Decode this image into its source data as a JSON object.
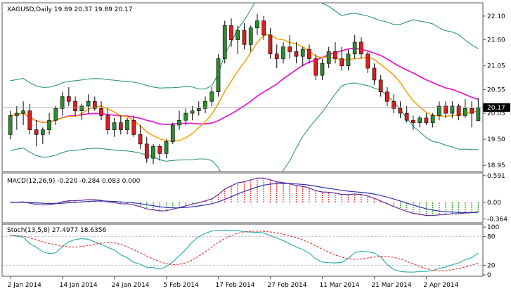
{
  "chart_data": {
    "type": "candlestick",
    "main": {
      "header": "XAGUSD,Daily  19.89 20.37 19.89 20.17",
      "ylim": [
        18.82,
        22.38
      ],
      "y_ticks": [
        "22.10",
        "21.60",
        "21.05",
        "20.55",
        "20.05",
        "19.50",
        "18.95"
      ],
      "y_tick_values": [
        22.1,
        21.6,
        21.05,
        20.55,
        20.05,
        19.5,
        18.95
      ],
      "current_price_label": "20.17",
      "current_price": 20.17,
      "candles": [
        [
          19.6,
          20.1,
          19.5,
          20.0
        ],
        [
          20.0,
          20.2,
          19.7,
          20.05
        ],
        [
          20.05,
          20.3,
          19.8,
          20.1
        ],
        [
          20.1,
          20.25,
          19.6,
          19.7
        ],
        [
          19.7,
          19.9,
          19.35,
          19.6
        ],
        [
          19.6,
          19.75,
          19.4,
          19.7
        ],
        [
          19.7,
          20.05,
          19.6,
          19.9
        ],
        [
          19.9,
          20.2,
          19.8,
          20.15
        ],
        [
          20.15,
          20.5,
          20.0,
          20.4
        ],
        [
          20.4,
          20.6,
          20.2,
          20.3
        ],
        [
          20.3,
          20.4,
          20.0,
          20.1
        ],
        [
          20.1,
          20.25,
          19.9,
          20.2
        ],
        [
          20.2,
          20.45,
          20.05,
          20.3
        ],
        [
          20.3,
          20.4,
          20.1,
          20.15
        ],
        [
          20.15,
          20.3,
          19.9,
          20.0
        ],
        [
          20.0,
          20.15,
          19.6,
          19.7
        ],
        [
          19.7,
          19.95,
          19.55,
          19.85
        ],
        [
          19.85,
          20.0,
          19.6,
          19.7
        ],
        [
          19.7,
          19.95,
          19.6,
          19.9
        ],
        [
          19.9,
          20.0,
          19.55,
          19.6
        ],
        [
          19.6,
          19.8,
          19.3,
          19.4
        ],
        [
          19.4,
          19.55,
          19.0,
          19.1
        ],
        [
          19.1,
          19.4,
          18.98,
          19.35
        ],
        [
          19.35,
          19.4,
          19.05,
          19.2
        ],
        [
          19.2,
          19.5,
          19.1,
          19.45
        ],
        [
          19.45,
          19.85,
          19.4,
          19.8
        ],
        [
          19.8,
          20.1,
          19.7,
          19.9
        ],
        [
          19.9,
          20.15,
          19.8,
          20.05
        ],
        [
          20.05,
          20.2,
          19.9,
          20.1
        ],
        [
          20.1,
          20.3,
          20.0,
          20.15
        ],
        [
          20.15,
          20.4,
          20.05,
          20.3
        ],
        [
          20.3,
          20.6,
          20.2,
          20.5
        ],
        [
          20.5,
          21.3,
          20.4,
          21.2
        ],
        [
          21.2,
          22.0,
          21.1,
          21.9
        ],
        [
          21.9,
          22.05,
          21.45,
          21.6
        ],
        [
          21.6,
          21.9,
          21.3,
          21.8
        ],
        [
          21.8,
          21.95,
          21.4,
          21.5
        ],
        [
          21.5,
          21.9,
          21.35,
          21.85
        ],
        [
          21.85,
          22.15,
          21.7,
          22.0
        ],
        [
          22.0,
          22.1,
          21.6,
          21.7
        ],
        [
          21.7,
          21.85,
          21.2,
          21.3
        ],
        [
          21.3,
          21.5,
          21.0,
          21.2
        ],
        [
          21.2,
          21.55,
          21.1,
          21.45
        ],
        [
          21.45,
          21.7,
          21.2,
          21.35
        ],
        [
          21.35,
          21.55,
          21.1,
          21.25
        ],
        [
          21.25,
          21.45,
          21.05,
          21.4
        ],
        [
          21.4,
          21.5,
          21.1,
          21.2
        ],
        [
          21.2,
          21.3,
          20.75,
          20.85
        ],
        [
          20.85,
          21.2,
          20.75,
          21.1
        ],
        [
          21.1,
          21.45,
          21.0,
          21.35
        ],
        [
          21.35,
          21.55,
          21.1,
          21.2
        ],
        [
          21.2,
          21.45,
          20.95,
          21.05
        ],
        [
          21.05,
          21.4,
          20.95,
          21.3
        ],
        [
          21.3,
          21.7,
          21.2,
          21.55
        ],
        [
          21.55,
          21.65,
          21.2,
          21.3
        ],
        [
          21.3,
          21.35,
          20.9,
          21.0
        ],
        [
          21.0,
          21.1,
          20.65,
          20.75
        ],
        [
          20.75,
          20.85,
          20.4,
          20.5
        ],
        [
          20.5,
          20.6,
          20.2,
          20.3
        ],
        [
          20.3,
          20.45,
          20.05,
          20.15
        ],
        [
          20.15,
          20.3,
          19.95,
          20.05
        ],
        [
          20.05,
          20.2,
          19.85,
          19.9
        ],
        [
          19.9,
          20.0,
          19.7,
          19.85
        ],
        [
          19.85,
          20.0,
          19.75,
          19.95
        ],
        [
          19.95,
          20.05,
          19.8,
          19.85
        ],
        [
          19.85,
          20.05,
          19.75,
          20.0
        ],
        [
          20.0,
          20.3,
          19.9,
          20.2
        ],
        [
          20.2,
          20.3,
          19.95,
          20.05
        ],
        [
          20.05,
          20.3,
          19.95,
          20.2
        ],
        [
          20.2,
          20.25,
          19.9,
          20.0
        ],
        [
          20.0,
          20.35,
          19.95,
          20.15
        ],
        [
          20.15,
          20.3,
          19.75,
          20.05
        ],
        [
          19.89,
          20.37,
          19.89,
          20.17
        ]
      ]
    },
    "macd": {
      "header": "MACD(12,26,9) -0.220 -0.284 0.083 0.000",
      "ylim": [
        -0.45,
        0.65
      ],
      "y_ticks": [
        "0.591",
        "0.00",
        "-0.364"
      ],
      "y_tick_values": [
        0.591,
        0.0,
        -0.364
      ]
    },
    "stoch": {
      "header": "Stoch(13,5,8) 27.4977 18.6356",
      "ylim": [
        -3,
        106
      ],
      "y_ticks": [
        "100",
        "80",
        "20",
        "0"
      ],
      "y_tick_values": [
        100,
        80,
        20,
        0
      ]
    },
    "x_labels": [
      {
        "label": "2 Jan 2014",
        "index": 0
      },
      {
        "label": "14 Jan 2014",
        "index": 8
      },
      {
        "label": "24 Jan 2014",
        "index": 16
      },
      {
        "label": "5 Feb 2014",
        "index": 24
      },
      {
        "label": "17 Feb 2014",
        "index": 32
      },
      {
        "label": "27 Feb 2014",
        "index": 40
      },
      {
        "label": "11 Mar 2014",
        "index": 48
      },
      {
        "label": "21 Mar 2014",
        "index": 56
      },
      {
        "label": "2 Apr 2014",
        "index": 64
      }
    ],
    "colors": {
      "bull": "#2e8b2e",
      "bear": "#d42020",
      "ma_fast": "#f5a000",
      "ma_slow": "#e020d0",
      "band": "#1a8a7a",
      "macd_hist_pos": "#e03030",
      "macd_hist_neg": "#20a020",
      "macd_line": "#6a2a9a",
      "signal_line": "#3030b0",
      "stoch_k": "#30b0b0",
      "stoch_d": "#e03030"
    }
  }
}
